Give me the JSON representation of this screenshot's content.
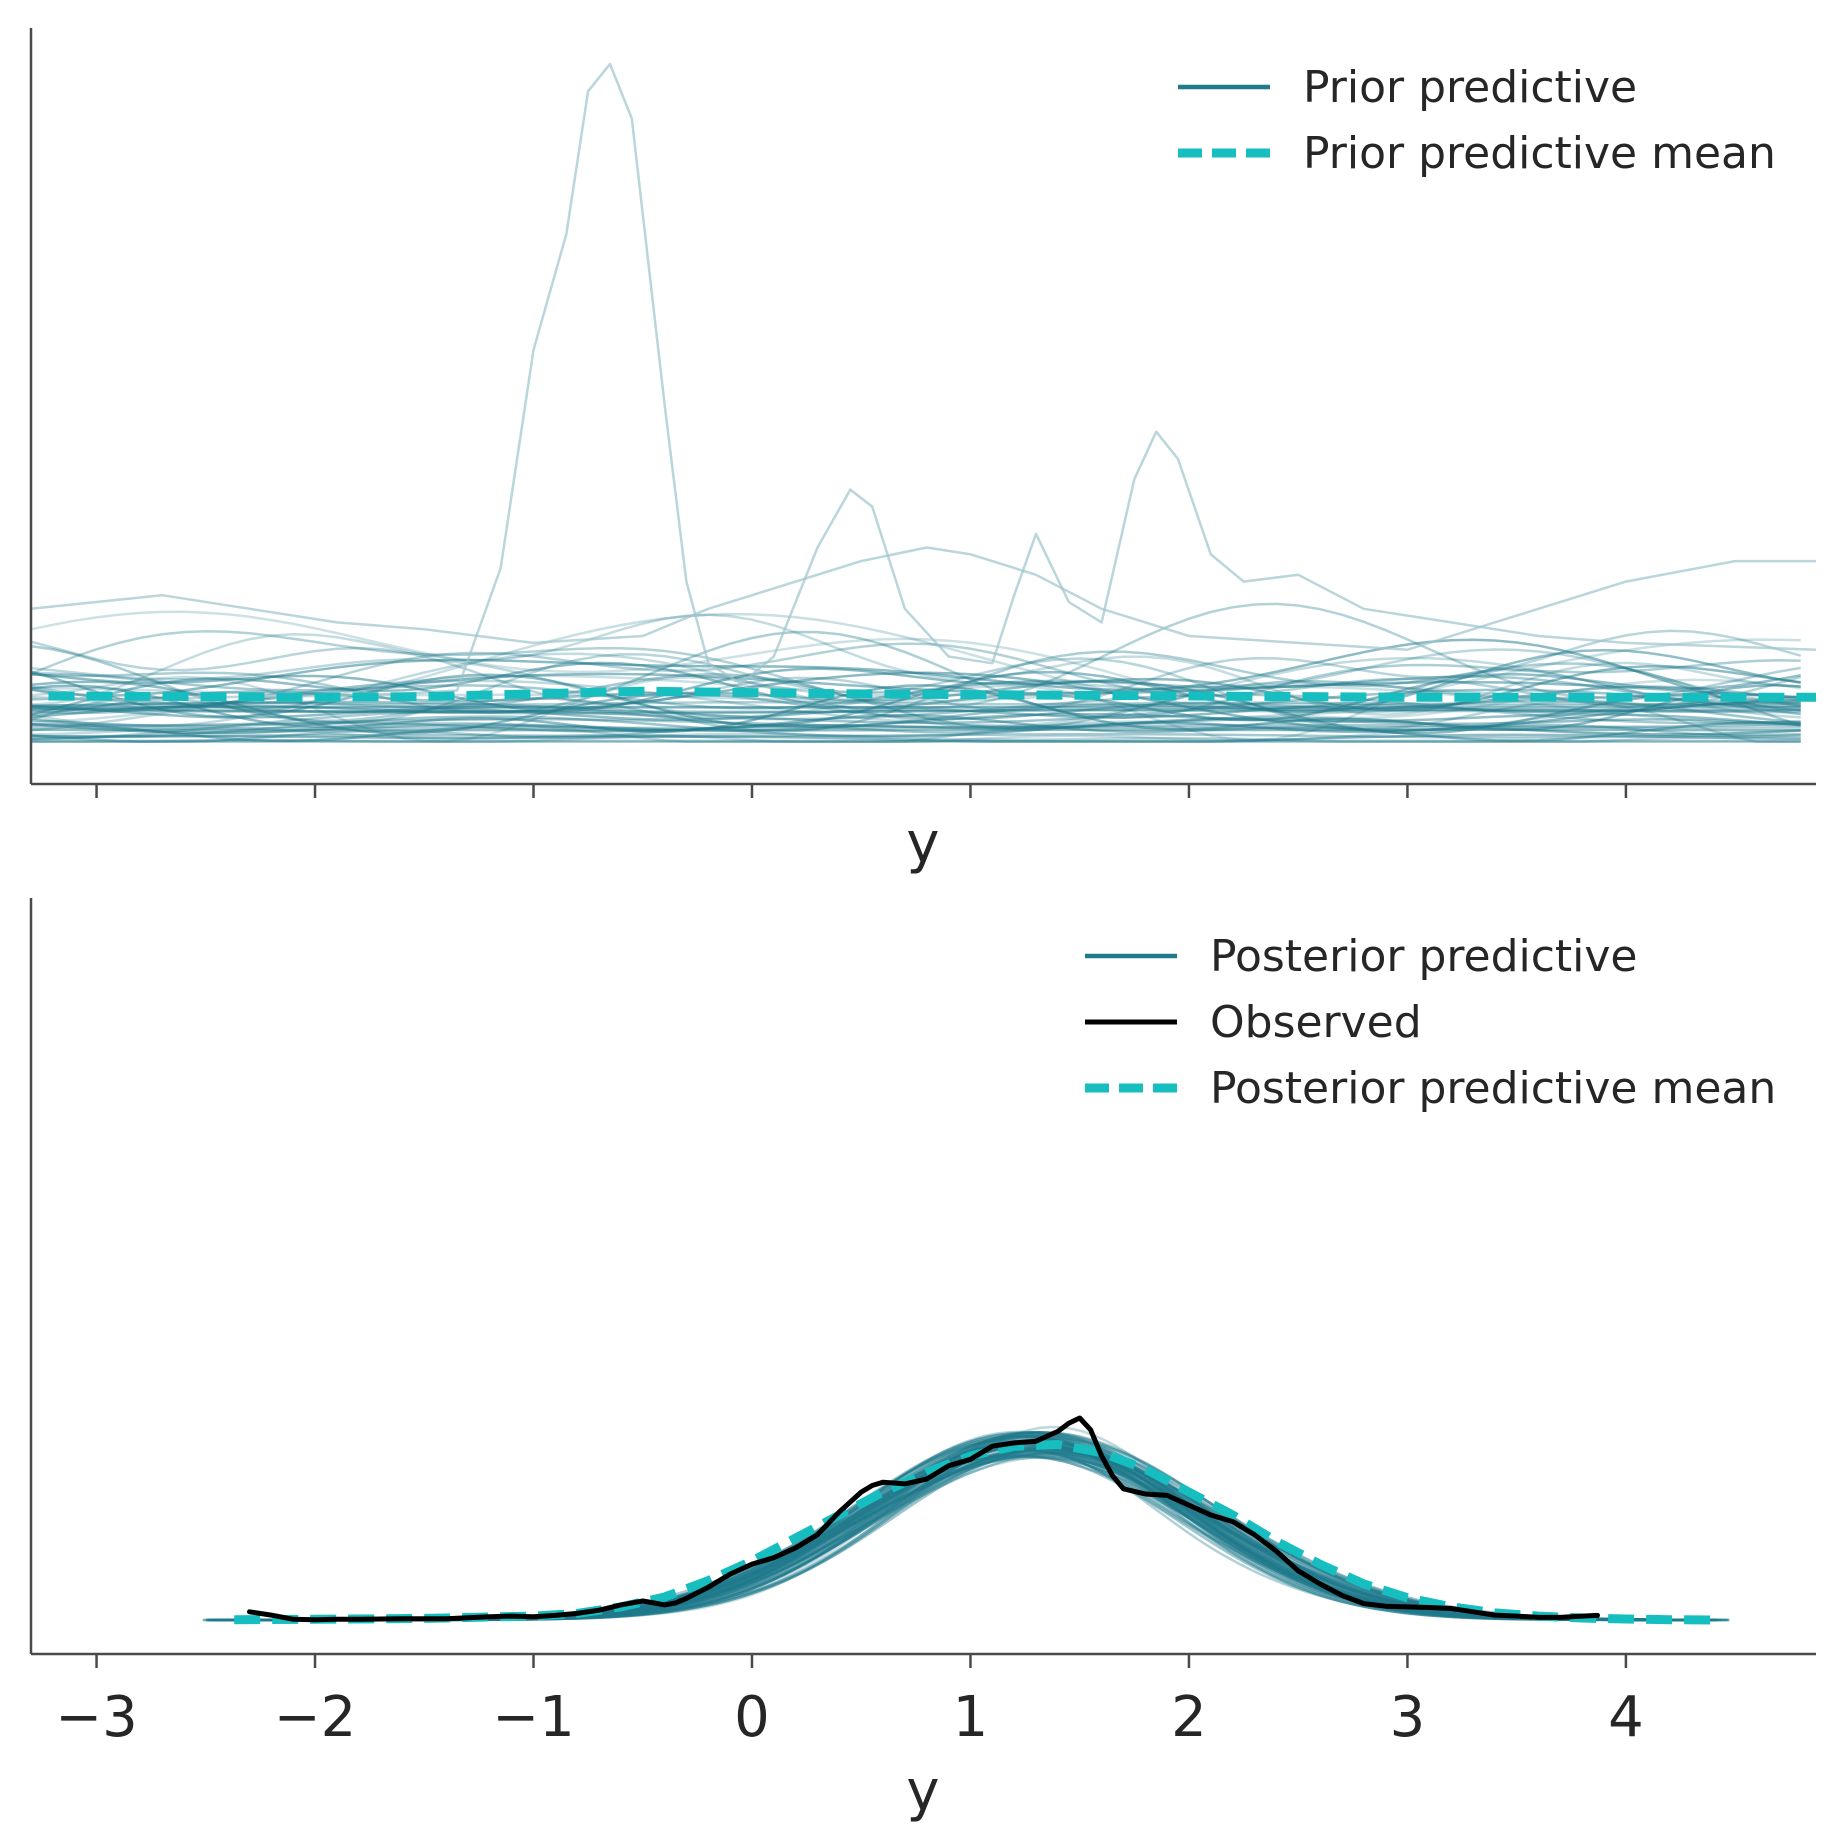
{
  "colors": {
    "prior": "#1f7a8c",
    "prior_faint": "#9cc3cc",
    "mean": "#17bec0",
    "observed": "#000000",
    "axis": "#4a4a4a"
  },
  "chart_data": [
    {
      "type": "line",
      "panel": "top",
      "xlabel": "y",
      "ylabel": "",
      "xlim": [
        -3.3,
        4.87
      ],
      "ylim": [
        0,
        1.0
      ],
      "x_ticks": [
        -3,
        -2,
        -1,
        0,
        1,
        2,
        3,
        4
      ],
      "x_tick_labels_shown": false,
      "legend": {
        "placement": "top-right",
        "entries": [
          {
            "label": "Prior predictive",
            "style": "solid",
            "color": "#1f7a8c"
          },
          {
            "label": "Prior predictive mean",
            "style": "dashed",
            "color": "#17bec0"
          }
        ]
      },
      "highlight_series": [
        {
          "x": [
            -3.3,
            -2.8,
            -2.5,
            -2.0,
            -1.6,
            -1.35,
            -1.15,
            -1.0,
            -0.85,
            -0.75,
            -0.65,
            -0.55,
            -0.4,
            -0.3,
            -0.2,
            -0.05,
            0.1,
            0.3,
            0.45,
            0.55,
            0.7,
            0.9,
            1.1,
            1.2,
            1.3,
            1.45,
            1.6,
            1.75,
            1.85,
            1.95,
            2.1,
            2.25,
            2.5,
            2.8,
            3.2,
            3.6,
            4.0,
            4.87
          ],
          "y": [
            0.07,
            0.065,
            0.07,
            0.072,
            0.075,
            0.08,
            0.26,
            0.58,
            0.75,
            0.96,
            1.0,
            0.92,
            0.5,
            0.24,
            0.12,
            0.09,
            0.13,
            0.29,
            0.375,
            0.35,
            0.2,
            0.13,
            0.12,
            0.22,
            0.31,
            0.21,
            0.18,
            0.39,
            0.46,
            0.42,
            0.28,
            0.24,
            0.25,
            0.2,
            0.18,
            0.16,
            0.15,
            0.14
          ]
        },
        {
          "x": [
            -3.3,
            -3.0,
            -2.7,
            -2.3,
            -1.9,
            -1.5,
            -1.0,
            -0.5,
            -0.2,
            0.2,
            0.5,
            0.8,
            1.0,
            1.3,
            1.6,
            2.0,
            2.5,
            3.0,
            3.5,
            4.0,
            4.5,
            4.87
          ],
          "y": [
            0.2,
            0.21,
            0.22,
            0.2,
            0.18,
            0.17,
            0.15,
            0.16,
            0.2,
            0.24,
            0.27,
            0.29,
            0.28,
            0.25,
            0.2,
            0.16,
            0.15,
            0.14,
            0.19,
            0.24,
            0.27,
            0.27
          ]
        }
      ],
      "mean_series": {
        "x": [
          -3.22,
          -2.5,
          -2.0,
          -1.5,
          -1.0,
          -0.5,
          0.0,
          0.5,
          1.0,
          1.5,
          2.0,
          2.5,
          3.0,
          3.5,
          4.0,
          4.5,
          4.87
        ],
        "y": [
          0.072,
          0.071,
          0.07,
          0.071,
          0.075,
          0.079,
          0.077,
          0.075,
          0.074,
          0.073,
          0.072,
          0.071,
          0.07,
          0.07,
          0.07,
          0.07,
          0.07
        ]
      },
      "random_draws": {
        "count": 50,
        "seed": 7,
        "base": 0.06,
        "spread": 0.13
      }
    },
    {
      "type": "line",
      "panel": "bottom",
      "xlabel": "y",
      "ylabel": "",
      "xlim": [
        -3.3,
        4.87
      ],
      "ylim": [
        0,
        1.0
      ],
      "x_ticks": [
        -3,
        -2,
        -1,
        0,
        1,
        2,
        3,
        4
      ],
      "x_tick_labels": [
        "−3",
        "−2",
        "−1",
        "0",
        "1",
        "2",
        "3",
        "4"
      ],
      "legend": {
        "placement": "top-right",
        "entries": [
          {
            "label": "Posterior predictive",
            "style": "solid",
            "color": "#1f7a8c"
          },
          {
            "label": "Observed",
            "style": "solid",
            "color": "#000000"
          },
          {
            "label": "Posterior predictive mean",
            "style": "dashed",
            "color": "#17bec0"
          }
        ]
      },
      "observed": {
        "x": [
          -2.3,
          -2.2,
          -2.1,
          -2.0,
          -1.9,
          -1.8,
          -1.6,
          -1.4,
          -1.2,
          -1.1,
          -1.0,
          -0.9,
          -0.8,
          -0.7,
          -0.6,
          -0.5,
          -0.45,
          -0.4,
          -0.35,
          -0.3,
          -0.2,
          -0.1,
          0.0,
          0.1,
          0.2,
          0.3,
          0.4,
          0.5,
          0.55,
          0.6,
          0.7,
          0.8,
          0.9,
          1.0,
          1.1,
          1.2,
          1.3,
          1.4,
          1.45,
          1.5,
          1.55,
          1.6,
          1.65,
          1.7,
          1.8,
          1.9,
          2.0,
          2.1,
          2.2,
          2.3,
          2.4,
          2.5,
          2.6,
          2.7,
          2.8,
          2.9,
          3.0,
          3.1,
          3.2,
          3.3,
          3.4,
          3.5,
          3.6,
          3.7,
          3.8,
          3.87
        ],
        "y": [
          0.025,
          0.015,
          0.002,
          0.001,
          0.002,
          0.002,
          0.004,
          0.004,
          0.01,
          0.012,
          0.01,
          0.014,
          0.02,
          0.03,
          0.046,
          0.058,
          0.052,
          0.046,
          0.052,
          0.066,
          0.1,
          0.14,
          0.17,
          0.19,
          0.22,
          0.26,
          0.33,
          0.39,
          0.41,
          0.42,
          0.415,
          0.43,
          0.47,
          0.49,
          0.53,
          0.54,
          0.545,
          0.575,
          0.6,
          0.616,
          0.58,
          0.5,
          0.44,
          0.4,
          0.384,
          0.38,
          0.35,
          0.32,
          0.3,
          0.26,
          0.21,
          0.15,
          0.11,
          0.075,
          0.05,
          0.042,
          0.04,
          0.038,
          0.035,
          0.025,
          0.015,
          0.012,
          0.008,
          0.008,
          0.012,
          0.014
        ]
      },
      "mean_series": {
        "x": [
          -2.37,
          -2.0,
          -1.5,
          -1.0,
          -0.8,
          -0.6,
          -0.4,
          -0.2,
          0.0,
          0.2,
          0.4,
          0.6,
          0.8,
          1.0,
          1.2,
          1.4,
          1.6,
          1.8,
          2.0,
          2.2,
          2.4,
          2.6,
          2.8,
          3.0,
          3.2,
          3.4,
          3.6,
          3.8,
          4.0,
          4.2,
          4.43
        ],
        "y": [
          0.001,
          0.002,
          0.005,
          0.012,
          0.02,
          0.04,
          0.07,
          0.12,
          0.18,
          0.25,
          0.32,
          0.39,
          0.45,
          0.5,
          0.53,
          0.535,
          0.51,
          0.46,
          0.39,
          0.32,
          0.24,
          0.17,
          0.11,
          0.068,
          0.04,
          0.022,
          0.012,
          0.006,
          0.003,
          0.001,
          0.0
        ]
      },
      "random_draws": {
        "count": 70,
        "seed": 11,
        "center": 1.28,
        "sigma": 0.75,
        "peak": 0.535
      }
    }
  ]
}
